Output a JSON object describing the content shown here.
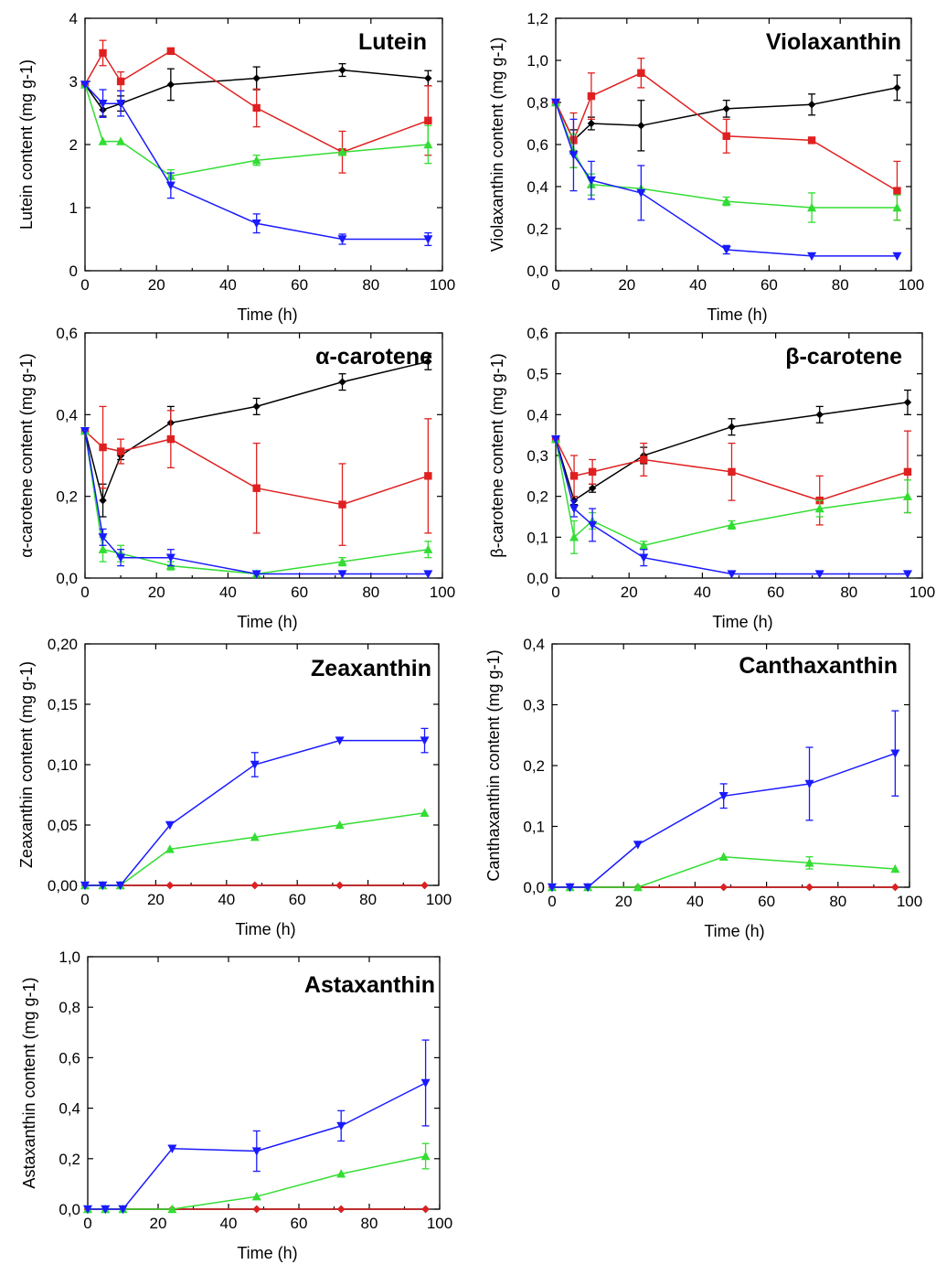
{
  "figure": {
    "series_legend": [
      "black",
      "red",
      "green",
      "blue"
    ]
  },
  "chart_data": [
    {
      "type": "line",
      "title": "Lutein",
      "xlabel": "Time (h)",
      "ylabel": "Lutein content (mg g-1)",
      "x": [
        0,
        5,
        10,
        24,
        48,
        72,
        96
      ],
      "xlim": [
        0,
        100
      ],
      "xticks": [
        0,
        20,
        40,
        60,
        80,
        100
      ],
      "xtick_labels": [
        "0",
        "20",
        "40",
        "60",
        "80",
        "100"
      ],
      "ylim": [
        0,
        4
      ],
      "yticks": [
        0,
        1,
        2,
        3,
        4
      ],
      "ytick_labels": [
        "0",
        "1",
        "2",
        "3",
        "4"
      ],
      "series": [
        {
          "name": "black",
          "color": "#000000",
          "marker": "diamond",
          "values": [
            2.95,
            2.55,
            2.65,
            2.95,
            3.05,
            3.18,
            3.05
          ],
          "errors": [
            0,
            0.1,
            0.12,
            0.25,
            0.18,
            0.1,
            0.12
          ]
        },
        {
          "name": "red",
          "color": "#e02020",
          "marker": "square",
          "values": [
            2.95,
            3.45,
            3.0,
            3.48,
            2.58,
            1.88,
            2.38
          ],
          "errors": [
            0,
            0.2,
            0.15,
            0,
            0.3,
            0.33,
            0.55
          ]
        },
        {
          "name": "green",
          "color": "#33dd33",
          "marker": "triangle-up",
          "values": [
            2.95,
            2.05,
            2.05,
            1.5,
            1.75,
            1.88,
            2.0
          ],
          "errors": [
            0,
            0,
            0,
            0.1,
            0.08,
            0,
            0.3
          ]
        },
        {
          "name": "blue",
          "color": "#1a1aff",
          "marker": "triangle-down",
          "values": [
            2.95,
            2.65,
            2.65,
            1.35,
            0.75,
            0.5,
            0.5
          ],
          "errors": [
            0,
            0.22,
            0.2,
            0.2,
            0.15,
            0.08,
            0.1
          ]
        }
      ]
    },
    {
      "type": "line",
      "title": "Violaxanthin",
      "xlabel": "Time (h)",
      "ylabel": "Violaxanthin content (mg g-1)",
      "x": [
        0,
        5,
        10,
        24,
        48,
        72,
        96
      ],
      "xlim": [
        0,
        100
      ],
      "xticks": [
        0,
        20,
        40,
        60,
        80,
        100
      ],
      "xtick_labels": [
        "0",
        "20",
        "40",
        "60",
        "80",
        "100"
      ],
      "ylim": [
        0,
        1.2
      ],
      "yticks": [
        0,
        0.2,
        0.4,
        0.6,
        0.8,
        1.0,
        1.2
      ],
      "ytick_labels": [
        "0,0",
        "0,2",
        "0,4",
        "0,6",
        "0,8",
        "1,0",
        "1,2"
      ],
      "series": [
        {
          "name": "black",
          "color": "#000000",
          "marker": "diamond",
          "values": [
            0.8,
            0.62,
            0.7,
            0.69,
            0.77,
            0.79,
            0.87
          ],
          "errors": [
            0,
            0.05,
            0.03,
            0.12,
            0.04,
            0.05,
            0.06
          ]
        },
        {
          "name": "red",
          "color": "#e02020",
          "marker": "square",
          "values": [
            0.8,
            0.62,
            0.83,
            0.94,
            0.64,
            0.62,
            0.38
          ],
          "errors": [
            0,
            0.13,
            0.11,
            0.07,
            0.08,
            0,
            0.14
          ]
        },
        {
          "name": "green",
          "color": "#33dd33",
          "marker": "triangle-up",
          "values": [
            0.8,
            0.57,
            0.41,
            0.39,
            0.33,
            0.3,
            0.3
          ],
          "errors": [
            0,
            0.08,
            0.05,
            0,
            0.02,
            0.07,
            0.06
          ]
        },
        {
          "name": "blue",
          "color": "#1a1aff",
          "marker": "triangle-down",
          "values": [
            0.8,
            0.55,
            0.43,
            0.37,
            0.1,
            0.07,
            0.07
          ],
          "errors": [
            0,
            0.17,
            0.09,
            0.13,
            0.02,
            0,
            0
          ]
        }
      ]
    },
    {
      "type": "line",
      "title": "α-carotene",
      "xlabel": "Time (h)",
      "ylabel": "α-carotene content (mg g-1)",
      "x": [
        0,
        5,
        10,
        24,
        48,
        72,
        96
      ],
      "xlim": [
        0,
        100
      ],
      "xticks": [
        0,
        20,
        40,
        60,
        80,
        100
      ],
      "xtick_labels": [
        "0",
        "20",
        "40",
        "60",
        "80",
        "100"
      ],
      "ylim": [
        0,
        0.6
      ],
      "yticks": [
        0,
        0.2,
        0.4,
        0.6
      ],
      "ytick_labels": [
        "0,0",
        "0,2",
        "0,4",
        "0,6"
      ],
      "series": [
        {
          "name": "black",
          "color": "#000000",
          "marker": "diamond",
          "values": [
            0.36,
            0.19,
            0.3,
            0.38,
            0.42,
            0.48,
            0.53
          ],
          "errors": [
            0,
            0.04,
            0.01,
            0.04,
            0.02,
            0.02,
            0.02
          ]
        },
        {
          "name": "red",
          "color": "#e02020",
          "marker": "square",
          "values": [
            0.36,
            0.32,
            0.31,
            0.34,
            0.22,
            0.18,
            0.25
          ],
          "errors": [
            0,
            0.1,
            0.03,
            0.07,
            0.11,
            0.1,
            0.14
          ]
        },
        {
          "name": "green",
          "color": "#33dd33",
          "marker": "triangle-up",
          "values": [
            0.36,
            0.07,
            0.06,
            0.03,
            0.01,
            0.04,
            0.07
          ],
          "errors": [
            0,
            0.03,
            0.02,
            0.01,
            0,
            0.01,
            0.02
          ]
        },
        {
          "name": "blue",
          "color": "#1a1aff",
          "marker": "triangle-down",
          "values": [
            0.36,
            0.1,
            0.05,
            0.05,
            0.01,
            0.01,
            0.01
          ],
          "errors": [
            0,
            0.02,
            0.02,
            0.02,
            0,
            0,
            0
          ]
        }
      ]
    },
    {
      "type": "line",
      "title": "β-carotene",
      "xlabel": "Time (h)",
      "ylabel": "β-carotene content (mg g-1)",
      "x": [
        0,
        5,
        10,
        24,
        48,
        72,
        96
      ],
      "xlim": [
        0,
        100
      ],
      "xticks": [
        0,
        20,
        40,
        60,
        80,
        100
      ],
      "xtick_labels": [
        "0",
        "20",
        "40",
        "60",
        "80",
        "100"
      ],
      "ylim": [
        0,
        0.6
      ],
      "yticks": [
        0,
        0.1,
        0.2,
        0.3,
        0.4,
        0.5,
        0.6
      ],
      "ytick_labels": [
        "0,0",
        "0,1",
        "0,2",
        "0,3",
        "0,4",
        "0,5",
        "0,6"
      ],
      "series": [
        {
          "name": "black",
          "color": "#000000",
          "marker": "diamond",
          "values": [
            0.34,
            0.19,
            0.22,
            0.3,
            0.37,
            0.4,
            0.43
          ],
          "errors": [
            0,
            0.01,
            0.01,
            0.02,
            0.02,
            0.02,
            0.03
          ]
        },
        {
          "name": "red",
          "color": "#e02020",
          "marker": "square",
          "values": [
            0.34,
            0.25,
            0.26,
            0.29,
            0.26,
            0.19,
            0.26
          ],
          "errors": [
            0,
            0.05,
            0.03,
            0.04,
            0.07,
            0.06,
            0.1
          ]
        },
        {
          "name": "green",
          "color": "#33dd33",
          "marker": "triangle-up",
          "values": [
            0.34,
            0.1,
            0.14,
            0.08,
            0.13,
            0.17,
            0.2
          ],
          "errors": [
            0,
            0.04,
            0.02,
            0.01,
            0.01,
            0.02,
            0.04
          ]
        },
        {
          "name": "blue",
          "color": "#1a1aff",
          "marker": "triangle-down",
          "values": [
            0.34,
            0.17,
            0.13,
            0.05,
            0.01,
            0.01,
            0.01
          ],
          "errors": [
            0,
            0.02,
            0.04,
            0.02,
            0,
            0,
            0
          ]
        }
      ]
    },
    {
      "type": "line",
      "title": "Zeaxanthin",
      "xlabel": "Time (h)",
      "ylabel": "Zeaxanthin content (mg g-1)",
      "x": [
        0,
        5,
        10,
        24,
        48,
        72,
        96
      ],
      "xlim": [
        0,
        100
      ],
      "xticks": [
        0,
        20,
        40,
        60,
        80,
        100
      ],
      "xtick_labels": [
        "0",
        "20",
        "40",
        "60",
        "80",
        "100"
      ],
      "ylim": [
        0,
        0.2
      ],
      "yticks": [
        0,
        0.05,
        0.1,
        0.15,
        0.2
      ],
      "ytick_labels": [
        "0,00",
        "0,05",
        "0,10",
        "0,15",
        "0,20"
      ],
      "series": [
        {
          "name": "black",
          "color": "#000000",
          "marker": "diamond",
          "values": [
            0,
            0,
            0,
            0,
            0,
            0,
            0
          ],
          "errors": [
            0,
            0,
            0,
            0,
            0,
            0,
            0
          ]
        },
        {
          "name": "red",
          "color": "#e02020",
          "marker": "diamond",
          "values": [
            0,
            0,
            0,
            0,
            0,
            0,
            0
          ],
          "errors": [
            0,
            0,
            0,
            0,
            0,
            0,
            0
          ]
        },
        {
          "name": "green",
          "color": "#33dd33",
          "marker": "triangle-up",
          "values": [
            0,
            0,
            0,
            0.03,
            0.04,
            0.05,
            0.06
          ],
          "errors": [
            0,
            0,
            0,
            0,
            0,
            0,
            0
          ]
        },
        {
          "name": "blue",
          "color": "#1a1aff",
          "marker": "triangle-down",
          "values": [
            0,
            0,
            0,
            0.05,
            0.1,
            0.12,
            0.12
          ],
          "errors": [
            0,
            0,
            0,
            0,
            0.01,
            0,
            0.01
          ]
        }
      ]
    },
    {
      "type": "line",
      "title": "Canthaxanthin",
      "xlabel": "Time (h)",
      "ylabel": "Canthaxanthin content (mg g-1)",
      "x": [
        0,
        5,
        10,
        24,
        48,
        72,
        96
      ],
      "xlim": [
        0,
        100
      ],
      "xticks": [
        0,
        20,
        40,
        60,
        80,
        100
      ],
      "xtick_labels": [
        "0",
        "20",
        "40",
        "60",
        "80",
        "100"
      ],
      "ylim": [
        0,
        0.4
      ],
      "yticks": [
        0,
        0.1,
        0.2,
        0.3,
        0.4
      ],
      "ytick_labels": [
        "0,0",
        "0,1",
        "0,2",
        "0,3",
        "0,4"
      ],
      "series": [
        {
          "name": "black",
          "color": "#000000",
          "marker": "diamond",
          "values": [
            0,
            0,
            0,
            0,
            0,
            0,
            0
          ],
          "errors": [
            0,
            0,
            0,
            0,
            0,
            0,
            0
          ]
        },
        {
          "name": "red",
          "color": "#e02020",
          "marker": "diamond",
          "values": [
            0,
            0,
            0,
            0,
            0,
            0,
            0
          ],
          "errors": [
            0,
            0,
            0,
            0,
            0,
            0,
            0
          ]
        },
        {
          "name": "green",
          "color": "#33dd33",
          "marker": "triangle-up",
          "values": [
            0,
            0,
            0,
            0,
            0.05,
            0.04,
            0.03
          ],
          "errors": [
            0,
            0,
            0,
            0,
            0,
            0.01,
            0
          ]
        },
        {
          "name": "blue",
          "color": "#1a1aff",
          "marker": "triangle-down",
          "values": [
            0,
            0,
            0,
            0.07,
            0.15,
            0.17,
            0.22
          ],
          "errors": [
            0,
            0,
            0,
            0,
            0.02,
            0.06,
            0.07
          ]
        }
      ]
    },
    {
      "type": "line",
      "title": "Astaxanthin",
      "xlabel": "Time (h)",
      "ylabel": "Astaxanthin content (mg g-1)",
      "x": [
        0,
        5,
        10,
        24,
        48,
        72,
        96
      ],
      "xlim": [
        0,
        100
      ],
      "xticks": [
        0,
        20,
        40,
        60,
        80,
        100
      ],
      "xtick_labels": [
        "0",
        "20",
        "40",
        "60",
        "80",
        "100"
      ],
      "ylim": [
        0,
        1.0
      ],
      "yticks": [
        0,
        0.2,
        0.4,
        0.6,
        0.8,
        1.0
      ],
      "ytick_labels": [
        "0,0",
        "0,2",
        "0,4",
        "0,6",
        "0,8",
        "1,0"
      ],
      "series": [
        {
          "name": "black",
          "color": "#000000",
          "marker": "diamond",
          "values": [
            0,
            0,
            0,
            0,
            0,
            0,
            0
          ],
          "errors": [
            0,
            0,
            0,
            0,
            0,
            0,
            0
          ]
        },
        {
          "name": "red",
          "color": "#e02020",
          "marker": "diamond",
          "values": [
            0,
            0,
            0,
            0,
            0,
            0,
            0
          ],
          "errors": [
            0,
            0,
            0,
            0,
            0,
            0,
            0
          ]
        },
        {
          "name": "green",
          "color": "#33dd33",
          "marker": "triangle-up",
          "values": [
            0,
            0,
            0,
            0,
            0.05,
            0.14,
            0.21
          ],
          "errors": [
            0,
            0,
            0,
            0,
            0,
            0,
            0.05
          ]
        },
        {
          "name": "blue",
          "color": "#1a1aff",
          "marker": "triangle-down",
          "values": [
            0,
            0,
            0,
            0.24,
            0.23,
            0.33,
            0.5
          ],
          "errors": [
            0,
            0,
            0,
            0,
            0.08,
            0.06,
            0.17
          ]
        }
      ]
    }
  ]
}
